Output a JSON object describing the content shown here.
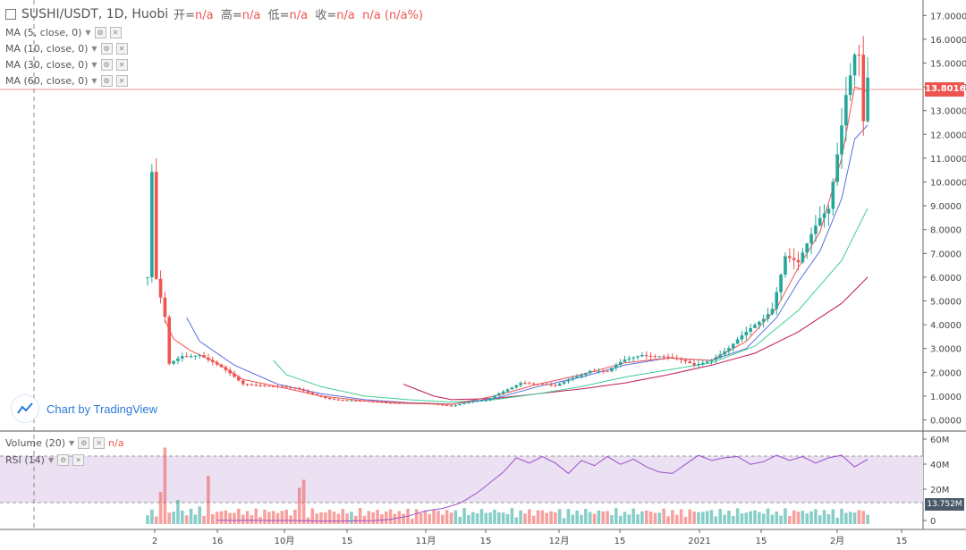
{
  "header": {
    "symbol": "SUSHI/USDT, 1D, Huobi",
    "open_label": "开=",
    "open_value": "n/a",
    "high_label": "高=",
    "high_value": "n/a",
    "low_label": "低=",
    "low_value": "n/a",
    "close_label": "收=",
    "close_value": "n/a",
    "change_value": "n/a (n/a%)"
  },
  "indicators": [
    {
      "label": "MA (5, close, 0)"
    },
    {
      "label": "MA (10, close, 0)"
    },
    {
      "label": "MA (30, close, 0)"
    },
    {
      "label": "MA (60, close, 0)"
    }
  ],
  "lower_indicators": {
    "volume_label": "Volume (20)",
    "volume_value": "n/a",
    "rsi_label": "RSI (14)"
  },
  "branding": {
    "text": "Chart by TradingView"
  },
  "current_price": "13.8016",
  "current_volume": "13.752M",
  "colors": {
    "up": "#26a69a",
    "down": "#ef5350",
    "ma5": "#ef5350",
    "ma10": "#5b6ee1",
    "ma30": "#3ecf8e",
    "ma60": "#c2185b",
    "rsi": "#9c4dcc",
    "rsi_band": "#ece1f3"
  },
  "chart_data": {
    "type": "candlestick",
    "y_ticks": [
      "17.0000",
      "16.0000",
      "15.0000",
      "14.0000",
      "13.0000",
      "12.0000",
      "11.0000",
      "10.0000",
      "9.0000",
      "8.0000",
      "7.0000",
      "6.0000",
      "5.0000",
      "4.0000",
      "3.0000",
      "2.0000",
      "1.0000",
      "0.0000"
    ],
    "x_ticks": [
      "2",
      "16",
      "10月",
      "15",
      "11月",
      "15",
      "12月",
      "15",
      "2021",
      "15",
      "2月",
      "15"
    ],
    "volume_ticks": [
      "60M",
      "40M",
      "20M",
      "0"
    ],
    "ylim": [
      0,
      17
    ],
    "close_path": [
      [
        0,
        6.0
      ],
      [
        1,
        10.3
      ],
      [
        2,
        5.8
      ],
      [
        4,
        4.2
      ],
      [
        5,
        2.3
      ],
      [
        8,
        2.7
      ],
      [
        12,
        2.8
      ],
      [
        16,
        2.3
      ],
      [
        22,
        1.5
      ],
      [
        26,
        1.5
      ],
      [
        30,
        1.4
      ],
      [
        34,
        1.3
      ],
      [
        38,
        1.1
      ],
      [
        42,
        0.9
      ],
      [
        46,
        0.8
      ],
      [
        50,
        0.78
      ],
      [
        54,
        0.75
      ],
      [
        58,
        0.72
      ],
      [
        62,
        0.68
      ],
      [
        66,
        0.66
      ],
      [
        70,
        0.6
      ],
      [
        74,
        0.75
      ],
      [
        78,
        0.8
      ],
      [
        82,
        1.2
      ],
      [
        86,
        1.6
      ],
      [
        90,
        1.5
      ],
      [
        94,
        1.4
      ],
      [
        98,
        1.8
      ],
      [
        102,
        2.1
      ],
      [
        106,
        2.0
      ],
      [
        110,
        2.5
      ],
      [
        114,
        2.8
      ],
      [
        118,
        2.7
      ],
      [
        122,
        2.5
      ],
      [
        126,
        2.3
      ],
      [
        130,
        2.6
      ],
      [
        134,
        3.0
      ],
      [
        138,
        3.6
      ],
      [
        142,
        4.3
      ],
      [
        144,
        4.8
      ],
      [
        147,
        7.0
      ],
      [
        150,
        6.5
      ],
      [
        152,
        7.2
      ],
      [
        155,
        8.4
      ],
      [
        157,
        9.0
      ],
      [
        159,
        11.5
      ],
      [
        161,
        14.0
      ],
      [
        163,
        15.4
      ],
      [
        164,
        15.2
      ],
      [
        165,
        12.3
      ],
      [
        166,
        14.0
      ]
    ],
    "ma5": [
      [
        4,
        4.2
      ],
      [
        6,
        3.4
      ],
      [
        10,
        2.9
      ],
      [
        16,
        2.4
      ],
      [
        22,
        1.7
      ],
      [
        30,
        1.4
      ],
      [
        40,
        1.0
      ],
      [
        50,
        0.8
      ],
      [
        60,
        0.7
      ],
      [
        70,
        0.65
      ],
      [
        80,
        1.0
      ],
      [
        90,
        1.5
      ],
      [
        100,
        1.9
      ],
      [
        110,
        2.4
      ],
      [
        120,
        2.6
      ],
      [
        130,
        2.5
      ],
      [
        138,
        3.3
      ],
      [
        145,
        4.7
      ],
      [
        150,
        6.4
      ],
      [
        155,
        7.9
      ],
      [
        160,
        11.0
      ],
      [
        163,
        14.0
      ],
      [
        166,
        13.8
      ]
    ],
    "ma10": [
      [
        9,
        4.3
      ],
      [
        12,
        3.3
      ],
      [
        20,
        2.3
      ],
      [
        30,
        1.5
      ],
      [
        40,
        1.1
      ],
      [
        50,
        0.85
      ],
      [
        60,
        0.72
      ],
      [
        70,
        0.66
      ],
      [
        80,
        0.9
      ],
      [
        90,
        1.4
      ],
      [
        100,
        1.8
      ],
      [
        110,
        2.3
      ],
      [
        120,
        2.6
      ],
      [
        130,
        2.5
      ],
      [
        138,
        3.0
      ],
      [
        145,
        4.3
      ],
      [
        150,
        5.8
      ],
      [
        155,
        7.1
      ],
      [
        160,
        9.3
      ],
      [
        163,
        11.8
      ],
      [
        166,
        12.4
      ]
    ],
    "ma30": [
      [
        29,
        2.5
      ],
      [
        32,
        1.9
      ],
      [
        40,
        1.4
      ],
      [
        50,
        1.0
      ],
      [
        60,
        0.85
      ],
      [
        70,
        0.75
      ],
      [
        80,
        0.85
      ],
      [
        90,
        1.1
      ],
      [
        100,
        1.4
      ],
      [
        110,
        1.8
      ],
      [
        120,
        2.1
      ],
      [
        130,
        2.4
      ],
      [
        140,
        3.1
      ],
      [
        150,
        4.6
      ],
      [
        160,
        6.7
      ],
      [
        166,
        8.9
      ]
    ],
    "ma60": [
      [
        59,
        1.5
      ],
      [
        66,
        1.0
      ],
      [
        70,
        0.85
      ],
      [
        80,
        0.9
      ],
      [
        90,
        1.1
      ],
      [
        100,
        1.3
      ],
      [
        110,
        1.55
      ],
      [
        120,
        1.9
      ],
      [
        130,
        2.3
      ],
      [
        140,
        2.8
      ],
      [
        150,
        3.7
      ],
      [
        160,
        4.9
      ],
      [
        166,
        6.0
      ]
    ],
    "rsi_series": [
      [
        16,
        0.8
      ],
      [
        20,
        0.7
      ],
      [
        24,
        0.9
      ],
      [
        28,
        0.6
      ],
      [
        32,
        0.7
      ],
      [
        36,
        0.5
      ],
      [
        40,
        0.2
      ],
      [
        44,
        0.3
      ],
      [
        48,
        0.4
      ],
      [
        52,
        0.5
      ],
      [
        56,
        1.5
      ],
      [
        60,
        4.0
      ],
      [
        64,
        8.0
      ],
      [
        68,
        10.0
      ],
      [
        72,
        14.0
      ],
      [
        76,
        22.0
      ],
      [
        79,
        30.0
      ],
      [
        82,
        38.0
      ],
      [
        85,
        49.0
      ],
      [
        88,
        45.0
      ],
      [
        91,
        50.0
      ],
      [
        94,
        45.0
      ],
      [
        97,
        37.0
      ],
      [
        100,
        47.0
      ],
      [
        103,
        43.0
      ],
      [
        106,
        50.0
      ],
      [
        109,
        44.0
      ],
      [
        112,
        48.0
      ],
      [
        115,
        42.0
      ],
      [
        118,
        38.0
      ],
      [
        121,
        37.0
      ],
      [
        124,
        44.0
      ],
      [
        127,
        51.0
      ],
      [
        130,
        47.0
      ],
      [
        133,
        49.0
      ],
      [
        136,
        50.0
      ],
      [
        139,
        44.0
      ],
      [
        142,
        46.0
      ],
      [
        145,
        51.0
      ],
      [
        148,
        47.0
      ],
      [
        151,
        50.0
      ],
      [
        154,
        45.0
      ],
      [
        157,
        49.0
      ],
      [
        160,
        51.0
      ],
      [
        163,
        42.0
      ],
      [
        166,
        48.0
      ]
    ]
  }
}
